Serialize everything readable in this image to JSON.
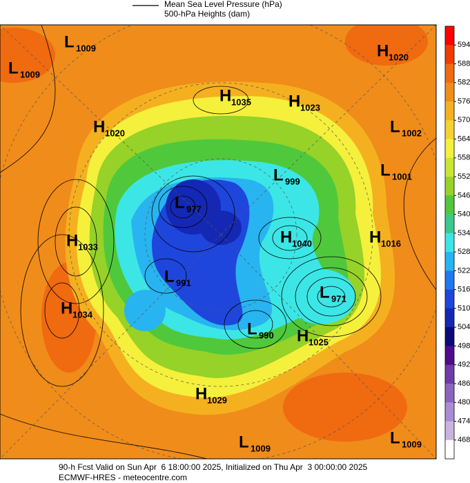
{
  "legend": {
    "line_label": "Mean Sea Level Pressure (hPa)",
    "fill_label": "500-hPa Heights (dam)"
  },
  "colorbar": {
    "ticks": [
      594,
      588,
      582,
      576,
      570,
      564,
      558,
      552,
      546,
      540,
      534,
      528,
      522,
      516,
      510,
      504,
      498,
      492,
      486,
      480,
      474,
      468
    ],
    "colors": [
      "#ff0000",
      "#f03c00",
      "#f06a10",
      "#f08c1a",
      "#f5b020",
      "#f5d230",
      "#f5f03c",
      "#c8e632",
      "#96d228",
      "#50c83c",
      "#3cc88c",
      "#3ce6e6",
      "#28b4f0",
      "#1e78f0",
      "#1e46dc",
      "#1428b4",
      "#0a0a78",
      "#500a8c",
      "#6e3caa",
      "#8c64be",
      "#aa8cd2",
      "#c8b4e1",
      "#ffffff"
    ]
  },
  "centers": [
    {
      "type": "L",
      "value": 1009
    },
    {
      "type": "L",
      "value": 1009
    },
    {
      "type": "H",
      "value": 1020
    },
    {
      "type": "H",
      "value": 1035
    },
    {
      "type": "H",
      "value": 1023
    },
    {
      "type": "H",
      "value": 1020
    },
    {
      "type": "L",
      "value": 1002
    },
    {
      "type": "L",
      "value": 999
    },
    {
      "type": "L",
      "value": 1001
    },
    {
      "type": "L",
      "value": 977
    },
    {
      "type": "H",
      "value": 1033
    },
    {
      "type": "H",
      "value": 1040
    },
    {
      "type": "H",
      "value": 1016
    },
    {
      "type": "L",
      "value": 991
    },
    {
      "type": "L",
      "value": 971
    },
    {
      "type": "H",
      "value": 1034
    },
    {
      "type": "L",
      "value": 990
    },
    {
      "type": "H",
      "value": 1025
    },
    {
      "type": "H",
      "value": 1029
    },
    {
      "type": "L",
      "value": 1009
    },
    {
      "type": "L",
      "value": 1009
    }
  ],
  "footer": {
    "valid": "90-h Fcst Valid on Sun Apr  6 18:00:00 2025, Initialized on Thu Apr  3 00:00:00 2025",
    "source": "ECMWF-HRES - meteocentre.com"
  }
}
